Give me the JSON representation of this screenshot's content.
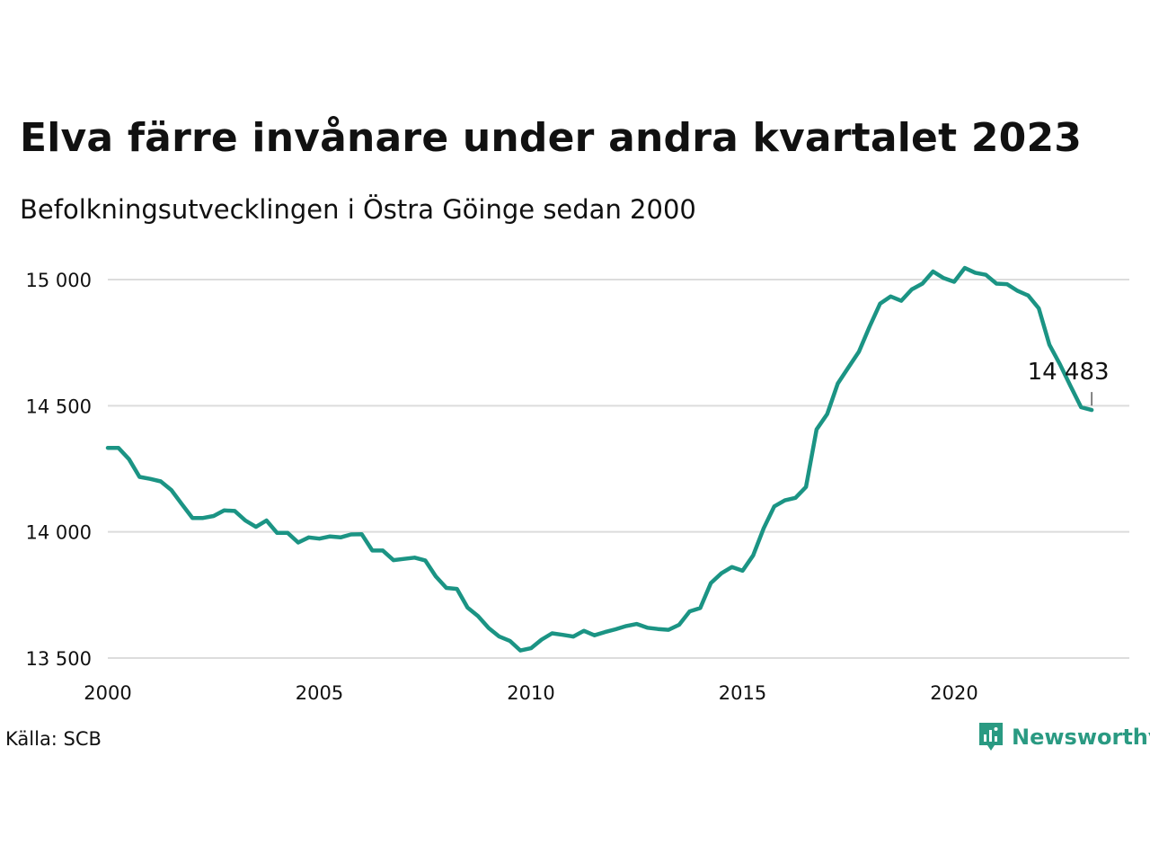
{
  "title": "Elva färre invånare under andra kvartalet 2023",
  "subtitle": "Befolkningsutvecklingen i Östra Göinge sedan 2000",
  "source": "Källa: SCB",
  "brand": {
    "name": "Newsworthy",
    "color": "#2a9a82",
    "logo_icon": "bar-chart-bubble-icon"
  },
  "chart_data": {
    "type": "line",
    "line_color": "#1b9484",
    "grid": true,
    "xlim": [
      2000,
      2024.1
    ],
    "ylim": [
      13450,
      15100
    ],
    "x_ticks": [
      2000,
      2005,
      2010,
      2015,
      2020
    ],
    "x_tick_labels": [
      "2000",
      "2005",
      "2010",
      "2015",
      "2020"
    ],
    "y_ticks": [
      13500,
      14000,
      14500,
      15000
    ],
    "y_tick_labels": [
      "13 500",
      "14 000",
      "14 500",
      "15 000"
    ],
    "end_label": "14 483",
    "series": [
      {
        "x": [
          2000.0,
          2000.25,
          2000.5,
          2000.75,
          2001.0,
          2001.25,
          2001.5,
          2001.75,
          2002.0,
          2002.25,
          2002.5,
          2002.75,
          2003.0,
          2003.25,
          2003.5,
          2003.75,
          2004.0,
          2004.25,
          2004.5,
          2004.75,
          2005.0,
          2005.25,
          2005.5,
          2005.75,
          2006.0,
          2006.25,
          2006.5,
          2006.75,
          2007.0,
          2007.25,
          2007.5,
          2007.75,
          2008.0,
          2008.25,
          2008.5,
          2008.75,
          2009.0,
          2009.25,
          2009.5,
          2009.75,
          2010.0,
          2010.25,
          2010.5,
          2010.75,
          2011.0,
          2011.25,
          2011.5,
          2011.75,
          2012.0,
          2012.25,
          2012.5,
          2012.75,
          2013.0,
          2013.25,
          2013.5,
          2013.75,
          2014.0,
          2014.25,
          2014.5,
          2014.75,
          2015.0,
          2015.25,
          2015.5,
          2015.75,
          2016.0,
          2016.25,
          2016.5,
          2016.75,
          2017.0,
          2017.25,
          2017.5,
          2017.75,
          2018.0,
          2018.25,
          2018.5,
          2018.75,
          2019.0,
          2019.25,
          2019.5,
          2019.75,
          2020.0,
          2020.25,
          2020.5,
          2020.75,
          2021.0,
          2021.25,
          2021.5,
          2021.75,
          2022.0,
          2022.25,
          2022.5,
          2022.75,
          2023.0,
          2023.25
        ],
        "values": [
          14333,
          14333,
          14288,
          14218,
          14210,
          14200,
          14166,
          14110,
          14055,
          14055,
          14063,
          14085,
          14083,
          14045,
          14020,
          14045,
          13996,
          13996,
          13958,
          13978,
          13973,
          13982,
          13978,
          13990,
          13991,
          13926,
          13926,
          13888,
          13893,
          13898,
          13887,
          13824,
          13778,
          13774,
          13700,
          13666,
          13619,
          13585,
          13568,
          13530,
          13539,
          13573,
          13598,
          13592,
          13585,
          13608,
          13590,
          13603,
          13614,
          13627,
          13635,
          13620,
          13615,
          13612,
          13632,
          13685,
          13698,
          13797,
          13836,
          13861,
          13846,
          13907,
          14014,
          14101,
          14125,
          14135,
          14178,
          14406,
          14467,
          14588,
          14652,
          14714,
          14813,
          14905,
          14933,
          14916,
          14961,
          14984,
          15032,
          15006,
          14991,
          15046,
          15027,
          15019,
          14984,
          14982,
          14955,
          14937,
          14886,
          14742,
          14664,
          14578,
          14494,
          14483
        ]
      }
    ]
  }
}
